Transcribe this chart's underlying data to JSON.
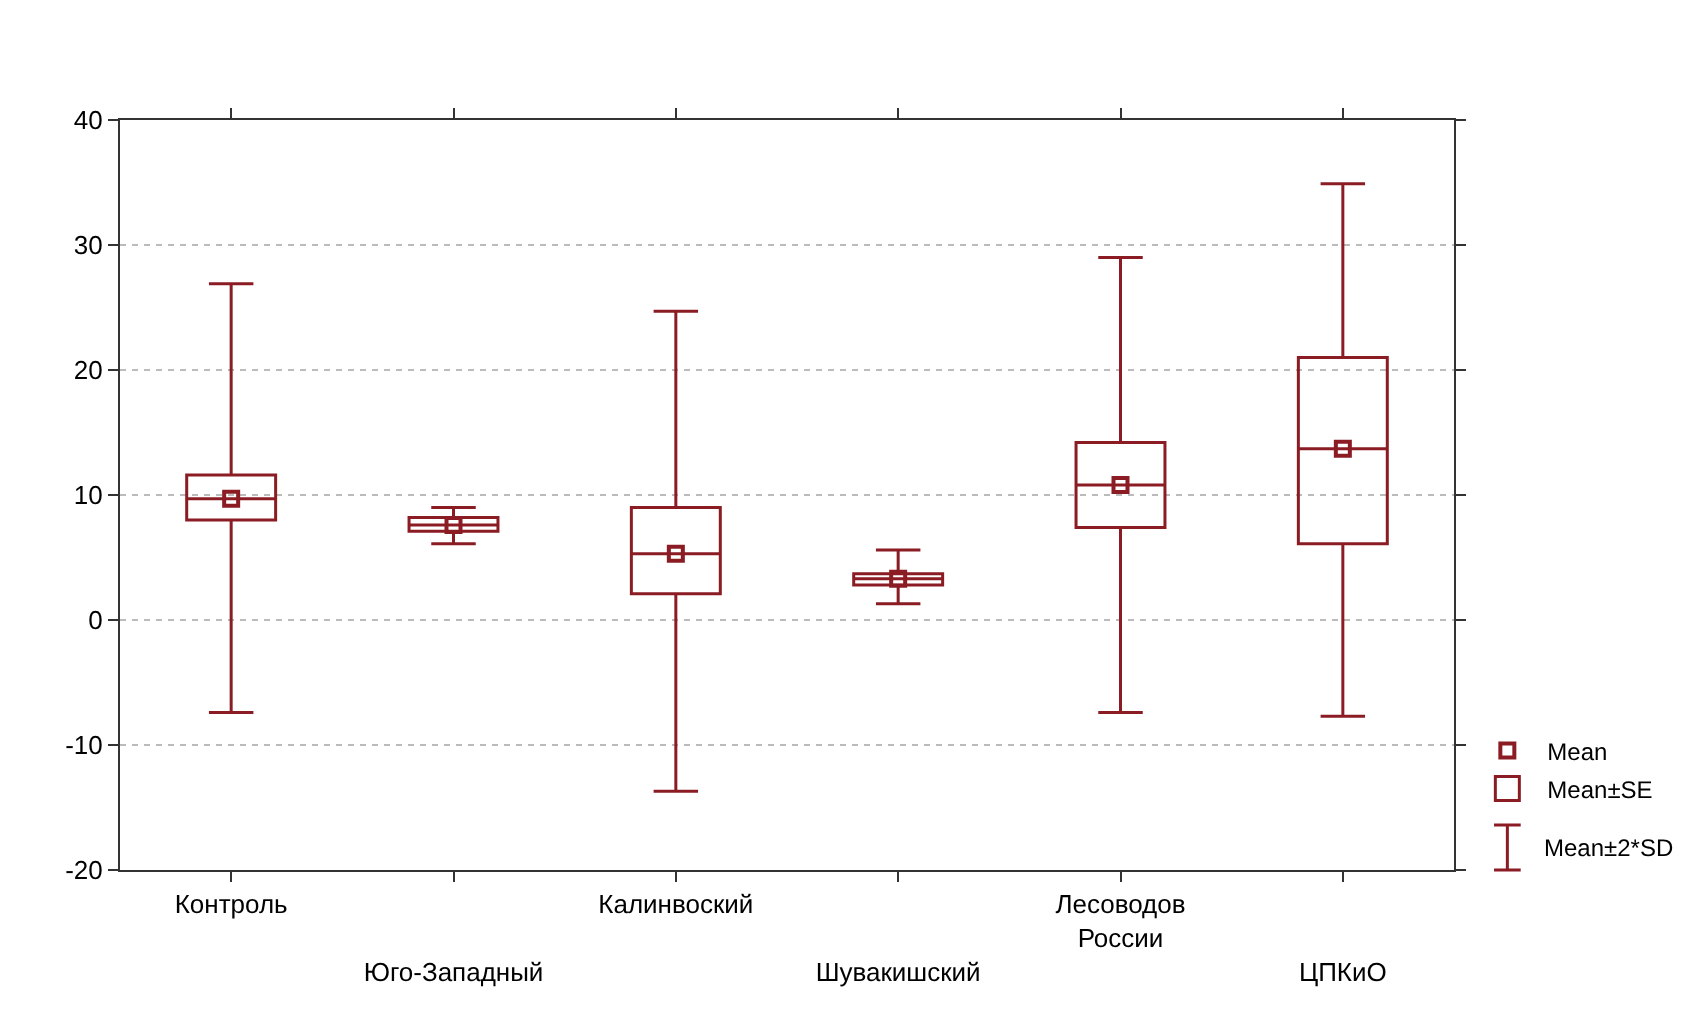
{
  "chart_data": {
    "type": "box",
    "categories": [
      "Контроль",
      "Юго-Западный",
      "Калинвоский",
      "Шувакишский",
      "Лесоводов России",
      "ЦПКиО"
    ],
    "series": [
      {
        "name": "Mean",
        "type": "scatter",
        "color": "#8b1c24",
        "values": [
          9.7,
          7.6,
          5.3,
          3.3,
          10.8,
          13.7
        ]
      },
      {
        "name": "Mean±SE",
        "color": "#8b1c24",
        "boxes": [
          {
            "low": -7.4,
            "q1": 8.0,
            "median": 9.7,
            "q3": 11.6,
            "high": 26.9
          },
          {
            "low": 6.1,
            "q1": 7.1,
            "median": 7.6,
            "q3": 8.2,
            "high": 9.0
          },
          {
            "low": -13.7,
            "q1": 2.1,
            "median": 5.3,
            "q3": 9.0,
            "high": 24.7
          },
          {
            "low": 1.3,
            "q1": 2.8,
            "median": 3.3,
            "q3": 3.7,
            "high": 5.6
          },
          {
            "low": -7.4,
            "q1": 7.4,
            "median": 10.8,
            "q3": 14.2,
            "high": 29.0
          },
          {
            "low": -7.7,
            "q1": 6.1,
            "median": 13.7,
            "q3": 21.0,
            "high": 34.9
          }
        ]
      }
    ],
    "annotations": [
      "Mean±2*SD"
    ],
    "ylim": [
      -20,
      40
    ],
    "yticks": [
      -20,
      -10,
      0,
      10,
      20,
      30,
      40
    ],
    "grid": "y",
    "legend": "bottom right",
    "marker": "square"
  }
}
